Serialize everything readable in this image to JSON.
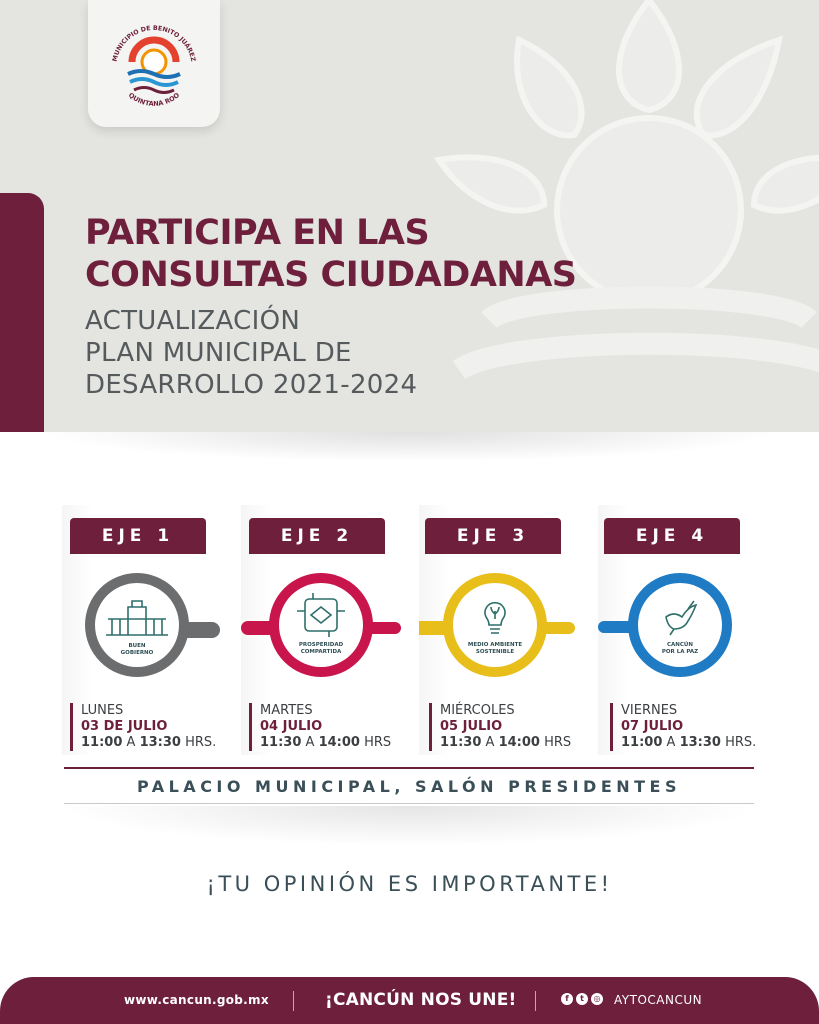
{
  "colors": {
    "brand": "#6d1f3c",
    "eje1": "#6b6d6f",
    "eje2": "#c8154b",
    "eje3": "#e8be1a",
    "eje4": "#1e7bc4"
  },
  "logo": {
    "top_text": "MUNICIPIO DE BENITO JUÁREZ",
    "bottom_text": "QUINTANA ROO"
  },
  "hero": {
    "title_line1": "PARTICIPA EN LAS",
    "title_line2": "CONSULTAS CIUDADANAS",
    "sub_line1": "ACTUALIZACIÓN",
    "sub_line2": "PLAN MUNICIPAL DE",
    "sub_line3": "DESARROLLO 2021-2024"
  },
  "ejes": [
    {
      "label": "EJE 1",
      "icon": "building-icon",
      "icon_text_1": "BUEN",
      "icon_text_2": "GOBIERNO",
      "day": "LUNES",
      "date": "03 DE JULIO",
      "start": "11:00",
      "sep": "A",
      "end": "13:30",
      "suffix": "HRS."
    },
    {
      "label": "EJE 2",
      "icon": "hands-icon",
      "icon_text_1": "PROSPERIDAD",
      "icon_text_2": "COMPARTIDA",
      "day": "MARTES",
      "date": "04 JULIO",
      "start": "11:30",
      "sep": "A",
      "end": "14:00",
      "suffix": "HRS"
    },
    {
      "label": "EJE 3",
      "icon": "lightbulb-leaf-icon",
      "icon_text_1": "MEDIO AMBIENTE",
      "icon_text_2": "SOSTENIBLE",
      "day": "MIÉRCOLES",
      "date": "05 JULIO",
      "start": "11:30",
      "sep": "A",
      "end": "14:00",
      "suffix": "HRS"
    },
    {
      "label": "EJE 4",
      "icon": "dove-icon",
      "icon_text_1": "CANCÚN",
      "icon_text_2": "POR LA PAZ",
      "day": "VIERNES",
      "date": "07 JULIO",
      "start": "11:00",
      "sep": "A",
      "end": "13:30",
      "suffix": "HRS."
    }
  ],
  "venue": "PALACIO MUNICIPAL, SALÓN PRESIDENTES",
  "tagline": "¡TU OPINIÓN ES IMPORTANTE!",
  "footer": {
    "website": "www.cancun.gob.mx",
    "slogan": "¡CANCÚN NOS UNE!",
    "social_icons": [
      "facebook-icon",
      "twitter-icon",
      "instagram-icon"
    ],
    "handle": "AYTOCANCUN"
  }
}
